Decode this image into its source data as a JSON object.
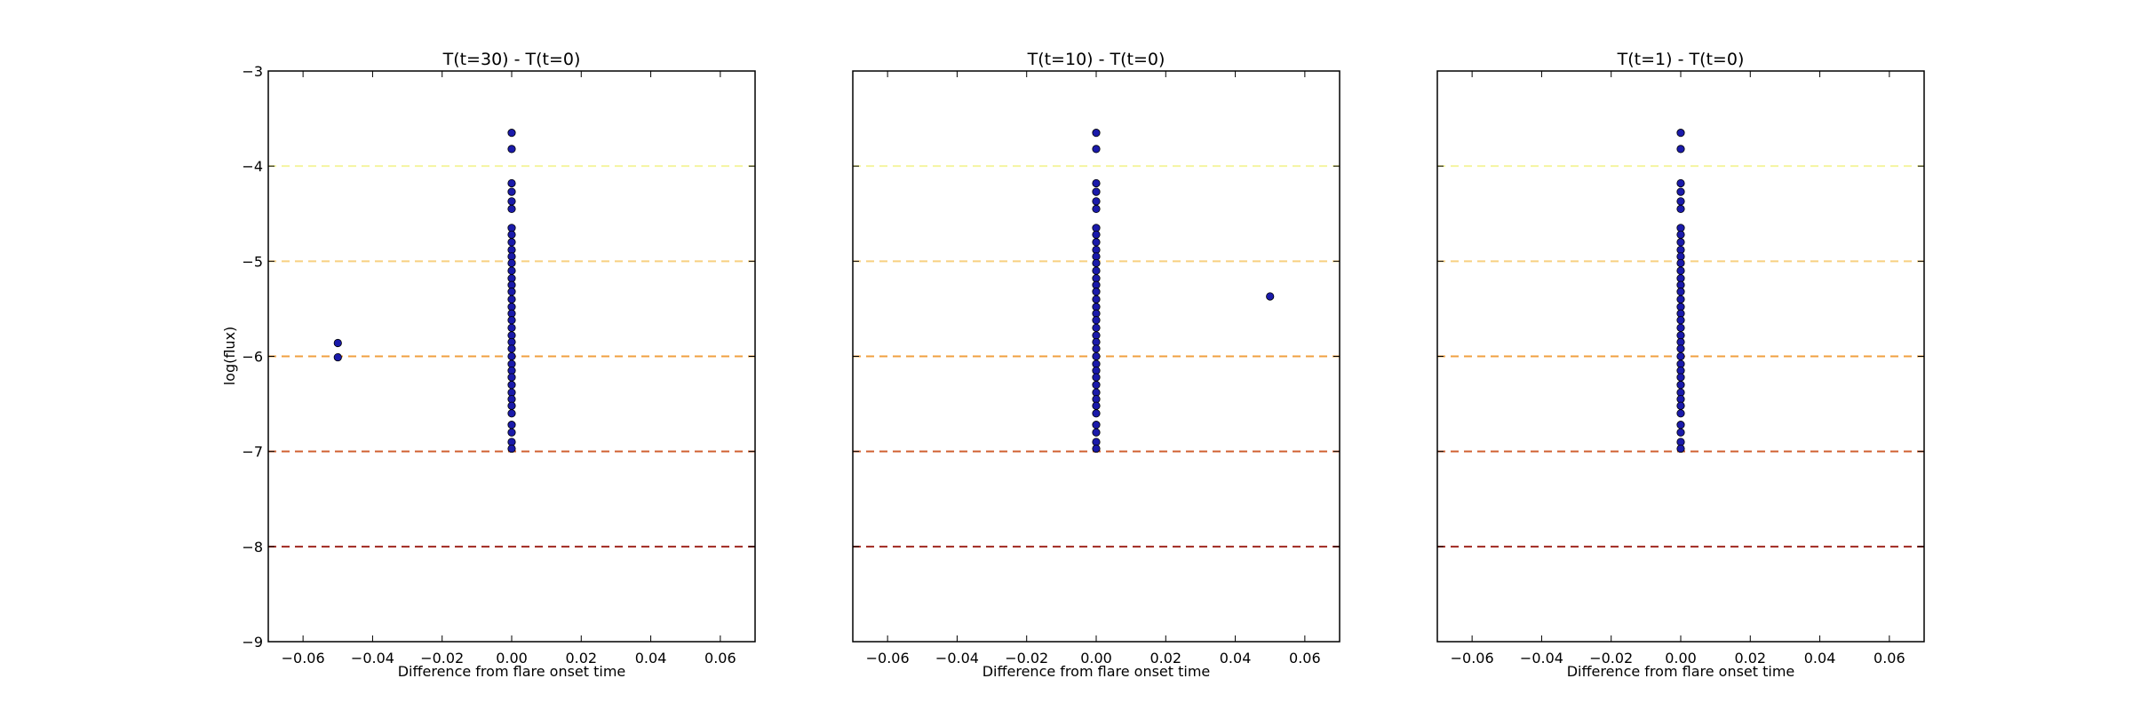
{
  "figure": {
    "ylabel": "log(flux)"
  },
  "chart_data": [
    {
      "type": "scatter",
      "title": "T(t=30) - T(t=0)",
      "xlabel": "Difference from flare onset time",
      "ylabel": "log(flux)",
      "xlim": [
        -0.07,
        0.07
      ],
      "ylim": [
        -9,
        -3
      ],
      "xticks": [
        "−0.06",
        "−0.04",
        "−0.02",
        "0.00",
        "0.02",
        "0.04",
        "0.06"
      ],
      "yticks": [
        "−3",
        "−4",
        "−5",
        "−6",
        "−7",
        "−8",
        "−9"
      ],
      "points": [
        {
          "x": 0,
          "y": -3.65
        },
        {
          "x": 0,
          "y": -3.82
        },
        {
          "x": 0,
          "y": -4.18
        },
        {
          "x": 0,
          "y": -4.27
        },
        {
          "x": 0,
          "y": -4.37
        },
        {
          "x": 0,
          "y": -4.45
        },
        {
          "x": 0,
          "y": -4.65
        },
        {
          "x": 0,
          "y": -4.72
        },
        {
          "x": 0,
          "y": -4.8
        },
        {
          "x": 0,
          "y": -4.88
        },
        {
          "x": 0,
          "y": -4.95
        },
        {
          "x": 0,
          "y": -5.02
        },
        {
          "x": 0,
          "y": -5.1
        },
        {
          "x": 0,
          "y": -5.18
        },
        {
          "x": 0,
          "y": -5.25
        },
        {
          "x": 0,
          "y": -5.32
        },
        {
          "x": 0,
          "y": -5.4
        },
        {
          "x": 0,
          "y": -5.48
        },
        {
          "x": 0,
          "y": -5.55
        },
        {
          "x": 0,
          "y": -5.62
        },
        {
          "x": 0,
          "y": -5.7
        },
        {
          "x": 0,
          "y": -5.78
        },
        {
          "x": 0,
          "y": -5.85
        },
        {
          "x": 0,
          "y": -5.92
        },
        {
          "x": 0,
          "y": -6.0
        },
        {
          "x": 0,
          "y": -6.08
        },
        {
          "x": 0,
          "y": -6.15
        },
        {
          "x": 0,
          "y": -6.22
        },
        {
          "x": 0,
          "y": -6.3
        },
        {
          "x": 0,
          "y": -6.38
        },
        {
          "x": 0,
          "y": -6.45
        },
        {
          "x": 0,
          "y": -6.52
        },
        {
          "x": 0,
          "y": -6.6
        },
        {
          "x": 0,
          "y": -6.72
        },
        {
          "x": 0,
          "y": -6.8
        },
        {
          "x": 0,
          "y": -6.9
        },
        {
          "x": 0,
          "y": -6.97
        },
        {
          "x": -0.05,
          "y": -5.86
        },
        {
          "x": -0.05,
          "y": -6.01
        }
      ],
      "hlines": [
        {
          "y": -4,
          "color": "#f5f5a0"
        },
        {
          "y": -5,
          "color": "#f8d080"
        },
        {
          "y": -6,
          "color": "#f0a040"
        },
        {
          "y": -7,
          "color": "#d06030"
        },
        {
          "y": -8,
          "color": "#a02820"
        }
      ],
      "marker_color": "#1a1aaa"
    },
    {
      "type": "scatter",
      "title": "T(t=10) - T(t=0)",
      "xlabel": "Difference from flare onset time",
      "xlim": [
        -0.07,
        0.07
      ],
      "ylim": [
        -9,
        -3
      ],
      "xticks": [
        "−0.06",
        "−0.04",
        "−0.02",
        "0.00",
        "0.02",
        "0.04",
        "0.06"
      ],
      "points": [
        {
          "x": 0,
          "y": -3.65
        },
        {
          "x": 0,
          "y": -3.82
        },
        {
          "x": 0,
          "y": -4.18
        },
        {
          "x": 0,
          "y": -4.27
        },
        {
          "x": 0,
          "y": -4.37
        },
        {
          "x": 0,
          "y": -4.45
        },
        {
          "x": 0,
          "y": -4.65
        },
        {
          "x": 0,
          "y": -4.72
        },
        {
          "x": 0,
          "y": -4.8
        },
        {
          "x": 0,
          "y": -4.88
        },
        {
          "x": 0,
          "y": -4.95
        },
        {
          "x": 0,
          "y": -5.02
        },
        {
          "x": 0,
          "y": -5.1
        },
        {
          "x": 0,
          "y": -5.18
        },
        {
          "x": 0,
          "y": -5.25
        },
        {
          "x": 0,
          "y": -5.32
        },
        {
          "x": 0,
          "y": -5.4
        },
        {
          "x": 0,
          "y": -5.48
        },
        {
          "x": 0,
          "y": -5.55
        },
        {
          "x": 0,
          "y": -5.62
        },
        {
          "x": 0,
          "y": -5.7
        },
        {
          "x": 0,
          "y": -5.78
        },
        {
          "x": 0,
          "y": -5.85
        },
        {
          "x": 0,
          "y": -5.92
        },
        {
          "x": 0,
          "y": -6.0
        },
        {
          "x": 0,
          "y": -6.08
        },
        {
          "x": 0,
          "y": -6.15
        },
        {
          "x": 0,
          "y": -6.22
        },
        {
          "x": 0,
          "y": -6.3
        },
        {
          "x": 0,
          "y": -6.38
        },
        {
          "x": 0,
          "y": -6.45
        },
        {
          "x": 0,
          "y": -6.52
        },
        {
          "x": 0,
          "y": -6.6
        },
        {
          "x": 0,
          "y": -6.72
        },
        {
          "x": 0,
          "y": -6.8
        },
        {
          "x": 0,
          "y": -6.9
        },
        {
          "x": 0,
          "y": -6.97
        },
        {
          "x": 0.05,
          "y": -5.37
        }
      ],
      "hlines": [
        {
          "y": -4,
          "color": "#f5f5a0"
        },
        {
          "y": -5,
          "color": "#f8d080"
        },
        {
          "y": -6,
          "color": "#f0a040"
        },
        {
          "y": -7,
          "color": "#d06030"
        },
        {
          "y": -8,
          "color": "#a02820"
        }
      ],
      "marker_color": "#1a1aaa"
    },
    {
      "type": "scatter",
      "title": "T(t=1) - T(t=0)",
      "xlabel": "Difference from flare onset time",
      "xlim": [
        -0.07,
        0.07
      ],
      "ylim": [
        -9,
        -3
      ],
      "xticks": [
        "−0.06",
        "−0.04",
        "−0.02",
        "0.00",
        "0.02",
        "0.04",
        "0.06"
      ],
      "points": [
        {
          "x": 0,
          "y": -3.65
        },
        {
          "x": 0,
          "y": -3.82
        },
        {
          "x": 0,
          "y": -4.18
        },
        {
          "x": 0,
          "y": -4.27
        },
        {
          "x": 0,
          "y": -4.37
        },
        {
          "x": 0,
          "y": -4.45
        },
        {
          "x": 0,
          "y": -4.65
        },
        {
          "x": 0,
          "y": -4.72
        },
        {
          "x": 0,
          "y": -4.8
        },
        {
          "x": 0,
          "y": -4.88
        },
        {
          "x": 0,
          "y": -4.95
        },
        {
          "x": 0,
          "y": -5.02
        },
        {
          "x": 0,
          "y": -5.1
        },
        {
          "x": 0,
          "y": -5.18
        },
        {
          "x": 0,
          "y": -5.25
        },
        {
          "x": 0,
          "y": -5.32
        },
        {
          "x": 0,
          "y": -5.4
        },
        {
          "x": 0,
          "y": -5.48
        },
        {
          "x": 0,
          "y": -5.55
        },
        {
          "x": 0,
          "y": -5.62
        },
        {
          "x": 0,
          "y": -5.7
        },
        {
          "x": 0,
          "y": -5.78
        },
        {
          "x": 0,
          "y": -5.85
        },
        {
          "x": 0,
          "y": -5.92
        },
        {
          "x": 0,
          "y": -6.0
        },
        {
          "x": 0,
          "y": -6.08
        },
        {
          "x": 0,
          "y": -6.15
        },
        {
          "x": 0,
          "y": -6.22
        },
        {
          "x": 0,
          "y": -6.3
        },
        {
          "x": 0,
          "y": -6.38
        },
        {
          "x": 0,
          "y": -6.45
        },
        {
          "x": 0,
          "y": -6.52
        },
        {
          "x": 0,
          "y": -6.6
        },
        {
          "x": 0,
          "y": -6.72
        },
        {
          "x": 0,
          "y": -6.8
        },
        {
          "x": 0,
          "y": -6.9
        },
        {
          "x": 0,
          "y": -6.97
        }
      ],
      "hlines": [
        {
          "y": -4,
          "color": "#f5f5a0"
        },
        {
          "y": -5,
          "color": "#f8d080"
        },
        {
          "y": -6,
          "color": "#f0a040"
        },
        {
          "y": -7,
          "color": "#d06030"
        },
        {
          "y": -8,
          "color": "#a02820"
        }
      ],
      "marker_color": "#1a1aaa"
    }
  ]
}
